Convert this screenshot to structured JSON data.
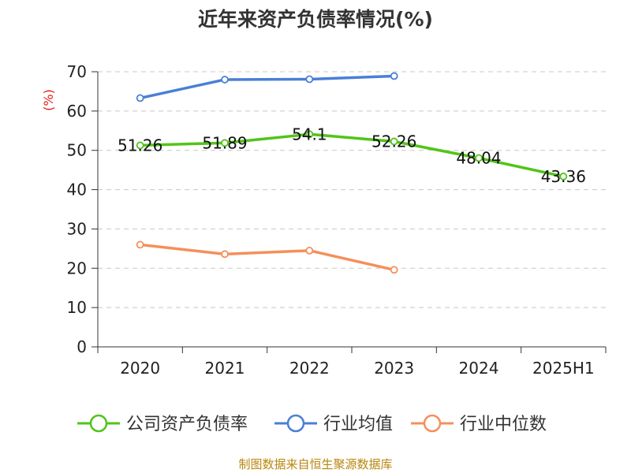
{
  "chart_data": {
    "type": "line",
    "title": "近年来资产负债率情况(%)",
    "unit": "(%)",
    "categories": [
      "2020",
      "2021",
      "2022",
      "2023",
      "2024",
      "2025H1"
    ],
    "ylim": [
      0,
      70
    ],
    "yticks": [
      0,
      10,
      20,
      30,
      40,
      50,
      60,
      70
    ],
    "grid": true,
    "legend_position": "bottom",
    "series": [
      {
        "name": "公司资产负债率",
        "color": "#52c41a",
        "values": [
          51.26,
          51.89,
          54.1,
          52.26,
          48.04,
          43.36
        ],
        "labels": [
          "51.26",
          "51.89",
          "54.1",
          "52.26",
          "48.04",
          "43.36"
        ]
      },
      {
        "name": "行业均值",
        "color": "#4a7fd6",
        "values": [
          63.3,
          68.0,
          68.1,
          68.9,
          null,
          null
        ]
      },
      {
        "name": "行业中位数",
        "color": "#f4905a",
        "values": [
          26.0,
          23.6,
          24.5,
          19.6,
          null,
          null
        ]
      }
    ]
  },
  "source": "制图数据来自恒生聚源数据库"
}
